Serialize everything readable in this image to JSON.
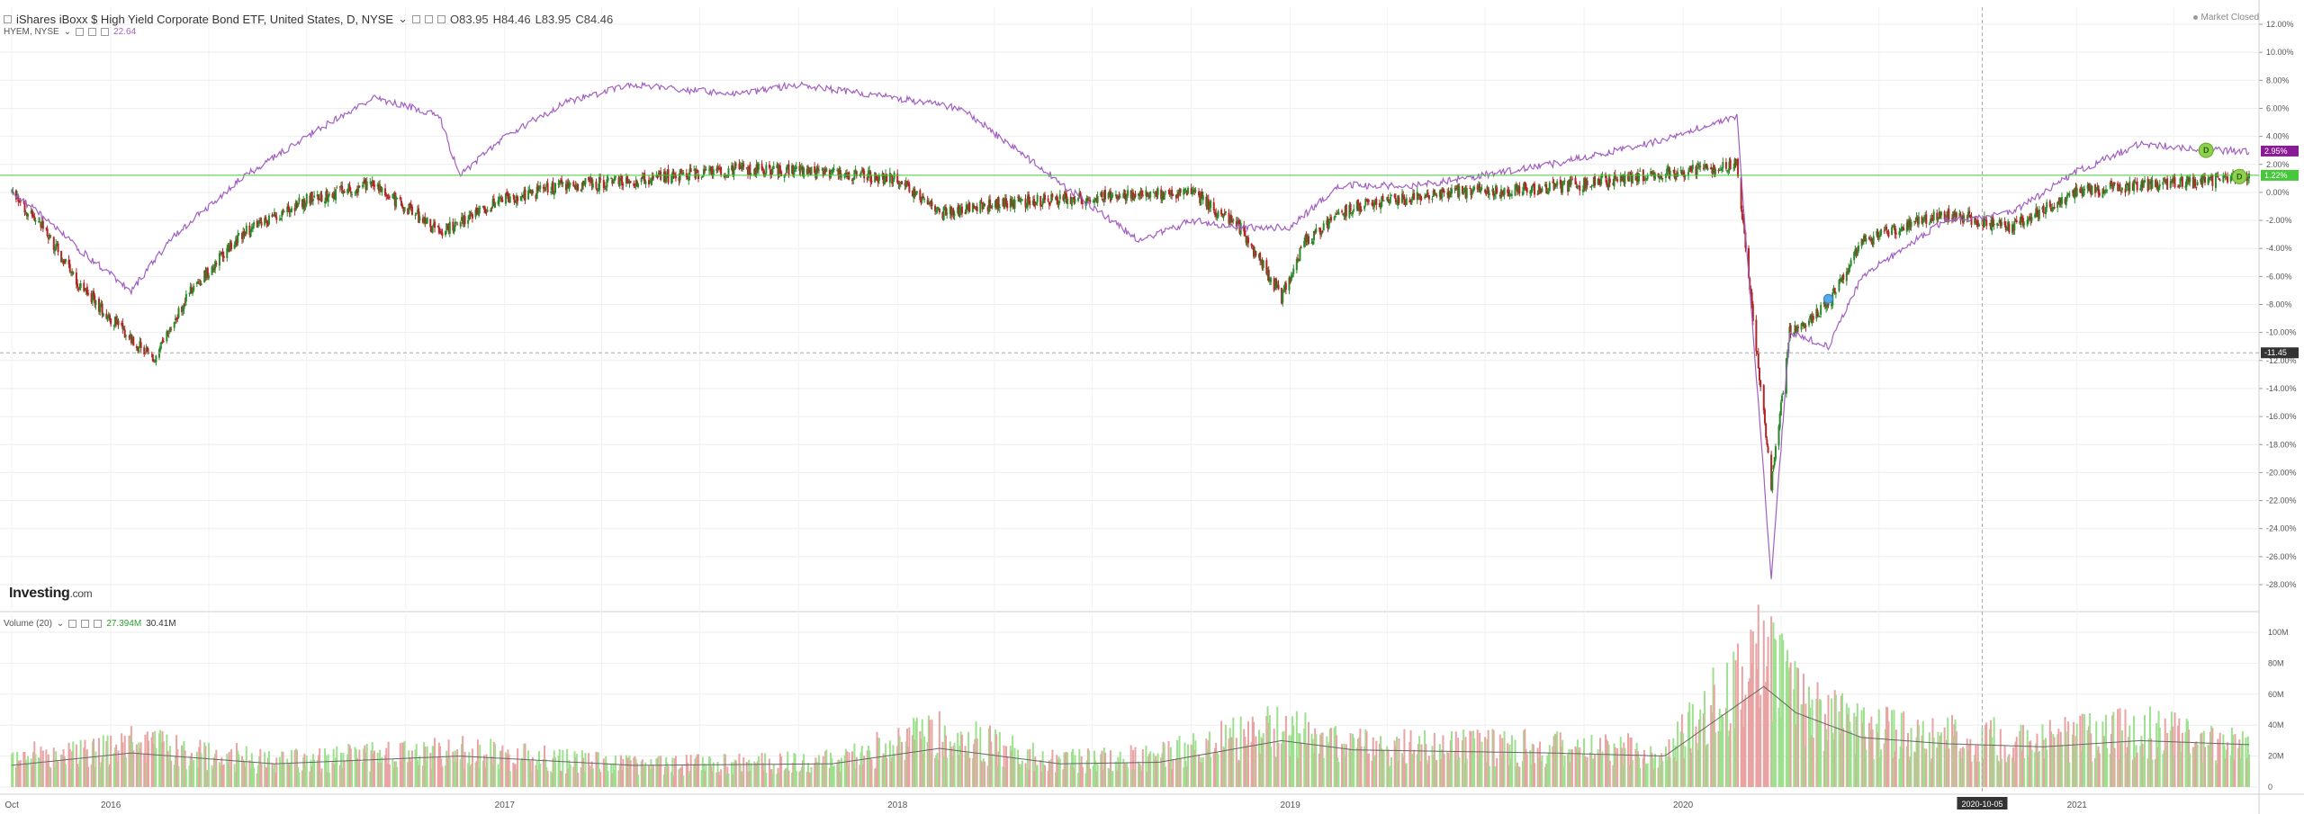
{
  "header": {
    "title": "iShares iBoxx $ High Yield Corporate Bond ETF, United States, D, NYSE",
    "ohlc": {
      "open": "O83.95",
      "high": "H84.46",
      "low": "L83.95",
      "close": "C84.46"
    },
    "market_status": "Market Closed"
  },
  "compare": {
    "symbol": "HYEM, NYSE",
    "value": "22.64"
  },
  "volume_legend": {
    "label": "Volume (20)",
    "value1": "27.394M",
    "value2": "30.41M"
  },
  "logo": {
    "name": "Investing",
    "suffix": ".com"
  },
  "colors": {
    "up": "#2a8a2a",
    "down": "#b02626",
    "compare_line": "#a25fc2",
    "hyg_marker": "#46c83a",
    "hyem_marker": "#8a1b96",
    "crosshair_label": "#333333",
    "vol_up": "#9de08e",
    "vol_down": "#e9a3a3",
    "vol_ma": "#666666"
  },
  "chart_data": [
    {
      "type": "line",
      "title": "iShares iBoxx $ High Yield Corporate Bond ETF, United States, D, NYSE",
      "y_scale": "percent change",
      "ylim": [
        -28,
        12
      ],
      "y_ticks": [
        "12.00%",
        "10.00%",
        "8.00%",
        "6.00%",
        "4.00%",
        "2.00%",
        "0.00%",
        "-2.00%",
        "-4.00%",
        "-6.00%",
        "-8.00%",
        "-10.00%",
        "-12.00%",
        "-14.00%",
        "-16.00%",
        "-18.00%",
        "-20.00%",
        "-22.00%",
        "-24.00%",
        "-26.00%",
        "-28.00%"
      ],
      "x_labels": [
        "Oct",
        "2016",
        "2017",
        "2018",
        "2019",
        "2020",
        "2021"
      ],
      "x_range": [
        "2015-10",
        "2021-06"
      ],
      "series": [
        {
          "name": "iShares iBoxx $ High Yield Corporate Bond ETF",
          "style": "candles",
          "points": [
            [
              "2015-10-01",
              0.0
            ],
            [
              "2015-11-01",
              -2.8
            ],
            [
              "2015-12-01",
              -6.5
            ],
            [
              "2016-01-01",
              -9.0
            ],
            [
              "2016-02-11",
              -12.0
            ],
            [
              "2016-03-15",
              -7.0
            ],
            [
              "2016-05-01",
              -3.0
            ],
            [
              "2016-07-01",
              -0.5
            ],
            [
              "2016-09-01",
              0.6
            ],
            [
              "2016-11-01",
              -2.8
            ],
            [
              "2017-01-01",
              -0.5
            ],
            [
              "2017-03-01",
              0.5
            ],
            [
              "2017-05-01",
              0.8
            ],
            [
              "2017-08-01",
              1.7
            ],
            [
              "2017-10-01",
              1.5
            ],
            [
              "2018-01-01",
              1.0
            ],
            [
              "2018-02-09",
              -1.5
            ],
            [
              "2018-04-01",
              -0.8
            ],
            [
              "2018-06-01",
              -0.5
            ],
            [
              "2018-08-01",
              -0.2
            ],
            [
              "2018-10-01",
              0.0
            ],
            [
              "2018-11-15",
              -2.5
            ],
            [
              "2018-12-24",
              -7.5
            ],
            [
              "2019-01-15",
              -3.5
            ],
            [
              "2019-03-01",
              -1.0
            ],
            [
              "2019-06-01",
              0.0
            ],
            [
              "2019-09-01",
              0.3
            ],
            [
              "2019-12-01",
              1.2
            ],
            [
              "2020-02-20",
              2.0
            ],
            [
              "2020-03-23",
              -21.0
            ],
            [
              "2020-04-09",
              -10.0
            ],
            [
              "2020-05-15",
              -8.0
            ],
            [
              "2020-06-15",
              -3.5
            ],
            [
              "2020-09-01",
              -1.5
            ],
            [
              "2020-11-01",
              -2.5
            ],
            [
              "2021-01-01",
              0.0
            ],
            [
              "2021-03-01",
              0.5
            ],
            [
              "2021-05-01",
              0.8
            ],
            [
              "2021-06-10",
              1.22
            ]
          ],
          "last_value": "1.22%"
        },
        {
          "name": "HYEM, NYSE",
          "style": "line",
          "points": [
            [
              "2015-10-01",
              0.0
            ],
            [
              "2015-11-01",
              -1.8
            ],
            [
              "2015-12-01",
              -4.0
            ],
            [
              "2016-01-20",
              -7.0
            ],
            [
              "2016-03-01",
              -3.0
            ],
            [
              "2016-05-01",
              1.0
            ],
            [
              "2016-07-01",
              4.0
            ],
            [
              "2016-09-01",
              6.8
            ],
            [
              "2016-11-01",
              5.5
            ],
            [
              "2016-11-20",
              1.2
            ],
            [
              "2017-01-01",
              4.0
            ],
            [
              "2017-03-01",
              6.5
            ],
            [
              "2017-05-01",
              7.7
            ],
            [
              "2017-08-01",
              7.0
            ],
            [
              "2017-10-01",
              7.7
            ],
            [
              "2018-01-01",
              6.7
            ],
            [
              "2018-03-01",
              6.0
            ],
            [
              "2018-05-01",
              2.5
            ],
            [
              "2018-07-01",
              -1.0
            ],
            [
              "2018-08-15",
              -3.5
            ],
            [
              "2018-10-01",
              -2.0
            ],
            [
              "2018-11-15",
              -2.5
            ],
            [
              "2019-01-01",
              -2.5
            ],
            [
              "2019-02-15",
              0.5
            ],
            [
              "2019-05-01",
              0.5
            ],
            [
              "2019-09-01",
              2.0
            ],
            [
              "2019-12-01",
              3.5
            ],
            [
              "2020-02-20",
              5.5
            ],
            [
              "2020-03-23",
              -27.5
            ],
            [
              "2020-04-09",
              -10.0
            ],
            [
              "2020-05-15",
              -11.0
            ],
            [
              "2020-06-15",
              -6.0
            ],
            [
              "2020-09-01",
              -2.0
            ],
            [
              "2020-11-01",
              -1.5
            ],
            [
              "2021-01-01",
              1.5
            ],
            [
              "2021-03-01",
              3.5
            ],
            [
              "2021-05-01",
              3.0
            ],
            [
              "2021-06-10",
              2.95
            ]
          ],
          "last_value": "2.95%"
        }
      ],
      "crosshair": {
        "x_label": "2020-10-05",
        "y_label": "-11.45"
      },
      "markers": [
        {
          "label": "D",
          "date": "2021-05-01",
          "series": "HYEM"
        },
        {
          "label": "D",
          "date": "2021-06-01",
          "series": "iShares"
        }
      ]
    },
    {
      "type": "bar",
      "title": "Volume (20)",
      "ylim": [
        0,
        100
      ],
      "y_ticks": [
        "100M",
        "80M",
        "60M",
        "40M",
        "20M",
        "0"
      ],
      "y_unit": "M",
      "series": [
        {
          "name": "Volume",
          "points": [
            [
              "2015-10-01",
              20
            ],
            [
              "2016-01-20",
              30
            ],
            [
              "2016-06-01",
              18
            ],
            [
              "2016-11-20",
              25
            ],
            [
              "2017-05-01",
              15
            ],
            [
              "2017-11-01",
              18
            ],
            [
              "2018-02-09",
              38
            ],
            [
              "2018-06-01",
              18
            ],
            [
              "2018-09-01",
              22
            ],
            [
              "2018-12-24",
              42
            ],
            [
              "2019-03-01",
              28
            ],
            [
              "2019-09-01",
              28
            ],
            [
              "2019-12-15",
              25
            ],
            [
              "2020-03-16",
              95
            ],
            [
              "2020-04-15",
              60
            ],
            [
              "2020-06-15",
              40
            ],
            [
              "2020-09-01",
              35
            ],
            [
              "2020-12-01",
              32
            ],
            [
              "2021-03-01",
              40
            ],
            [
              "2021-06-10",
              27
            ]
          ]
        },
        {
          "name": "Volume MA",
          "points": [
            [
              "2015-10-01",
              14
            ],
            [
              "2016-01-20",
              22
            ],
            [
              "2016-06-01",
              15
            ],
            [
              "2016-11-20",
              20
            ],
            [
              "2017-05-01",
              14
            ],
            [
              "2017-11-01",
              15
            ],
            [
              "2018-02-09",
              25
            ],
            [
              "2018-06-01",
              15
            ],
            [
              "2018-09-01",
              16
            ],
            [
              "2018-12-24",
              30
            ],
            [
              "2019-03-01",
              24
            ],
            [
              "2019-09-01",
              22
            ],
            [
              "2019-12-15",
              20
            ],
            [
              "2020-03-16",
              65
            ],
            [
              "2020-04-15",
              48
            ],
            [
              "2020-06-15",
              32
            ],
            [
              "2020-09-01",
              28
            ],
            [
              "2020-12-01",
              26
            ],
            [
              "2021-03-01",
              30
            ],
            [
              "2021-06-10",
              27.394
            ]
          ]
        }
      ]
    }
  ]
}
